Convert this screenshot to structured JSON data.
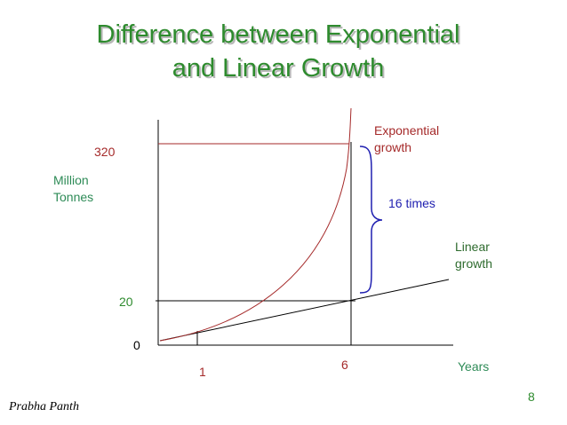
{
  "header": {
    "title_lines": [
      "Difference between Exponential",
      "and Linear Growth"
    ]
  },
  "axes": {
    "y_label_lines": [
      "Million",
      "Tonnes"
    ],
    "y_top": "320",
    "y_mid": "20",
    "origin": "0",
    "x_one": "1",
    "x_six": "6",
    "x_label": "Years"
  },
  "curves": {
    "exponential_lines": [
      "Exponential",
      "growth"
    ],
    "linear_lines": [
      "Linear",
      "growth"
    ],
    "ratio": "16 times"
  },
  "footer": {
    "page": "8",
    "author": "Prabha Panth"
  }
}
